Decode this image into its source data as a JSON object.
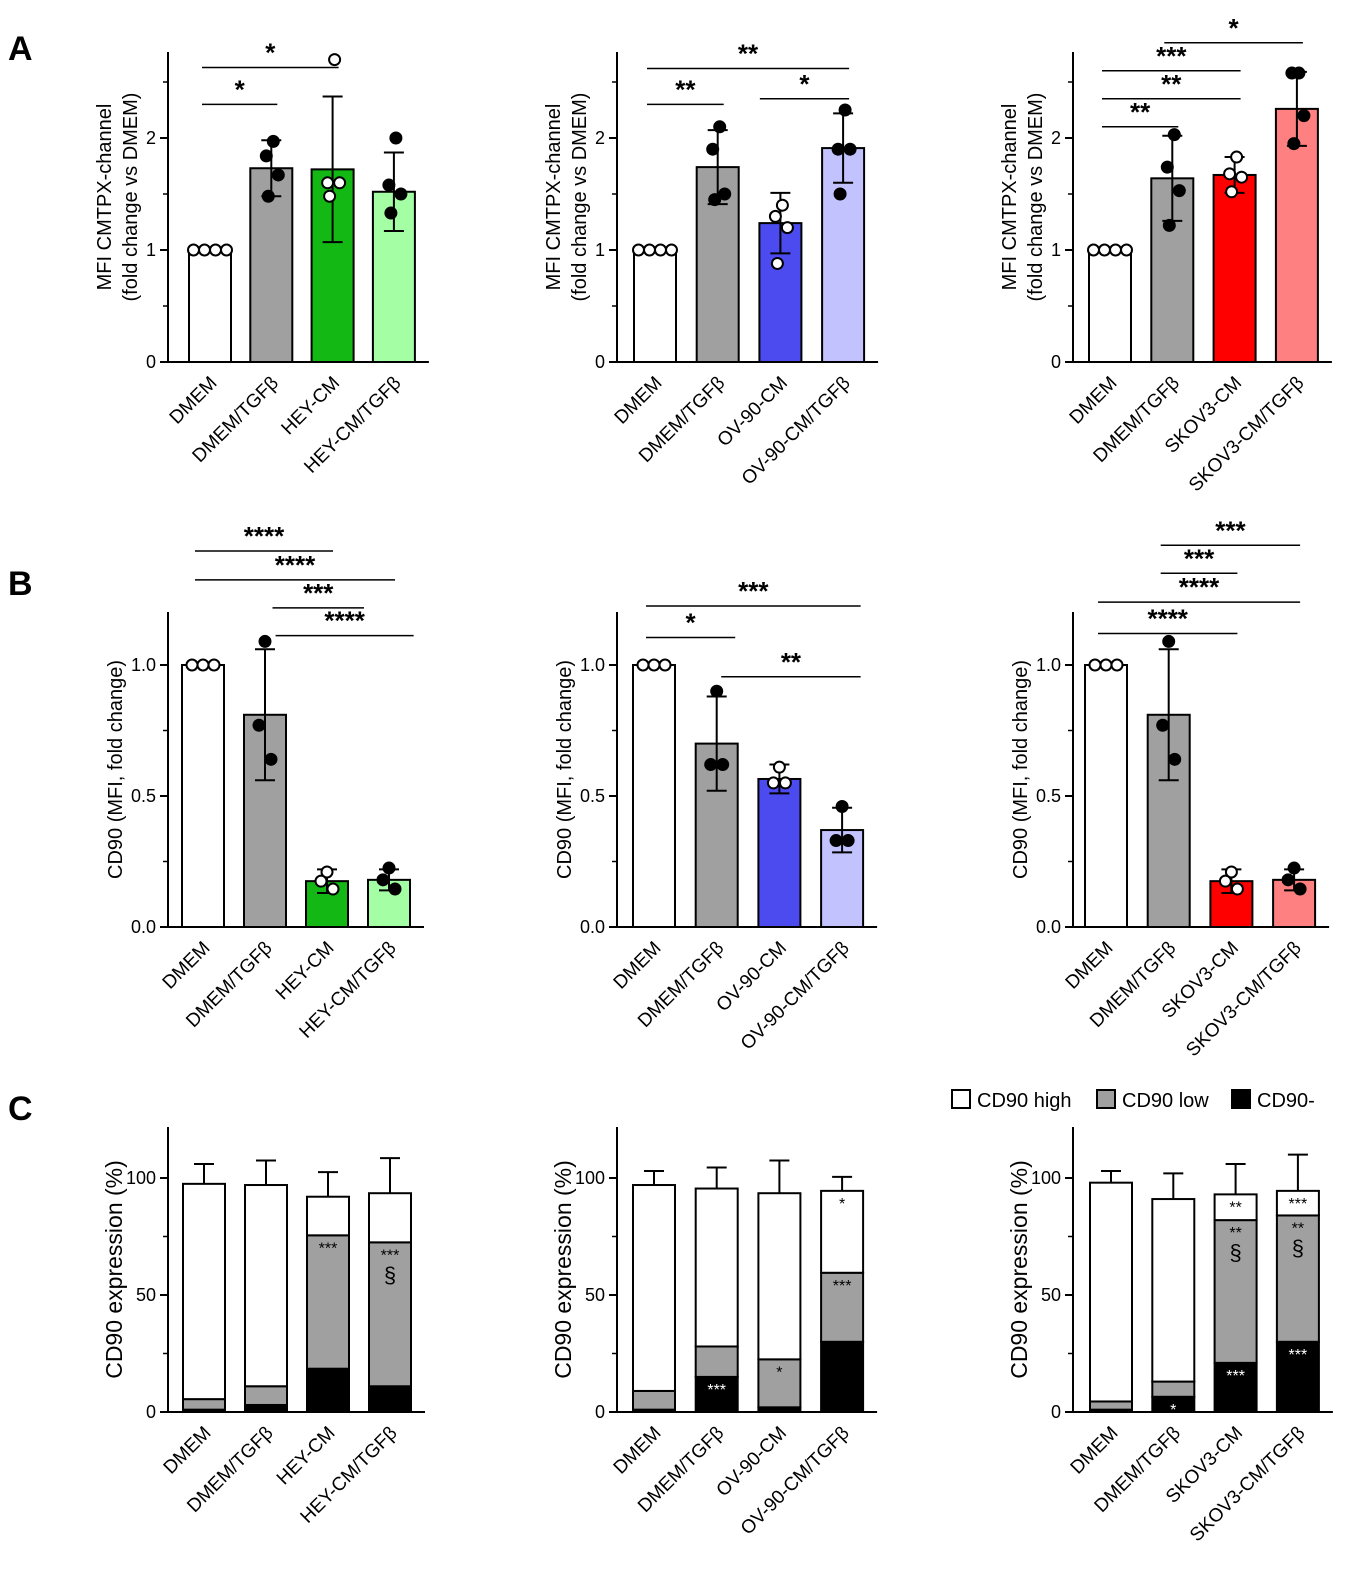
{
  "panel_letters": [
    "A",
    "B",
    "C"
  ],
  "legend": {
    "items": [
      {
        "label": "CD90 high",
        "color": "#ffffff"
      },
      {
        "label": "CD90 low",
        "color": "#a0a0a0"
      },
      {
        "label": "CD90-",
        "color": "#000000"
      }
    ]
  },
  "chart_data": [
    {
      "id": "A1",
      "type": "bar",
      "panel": "A",
      "ylabel": [
        "MFI CMTPX-channel",
        "(fold change vs DMEM)"
      ],
      "ylim": [
        0,
        2.8
      ],
      "yticks": [
        "0",
        "1",
        "2"
      ],
      "ytick_values": [
        0,
        1,
        2
      ],
      "categories": [
        "DMEM",
        "DMEM/TGFβ",
        "HEY-CM",
        "HEY-CM/TGFβ"
      ],
      "colors": [
        "#ffffff",
        "#a0a0a0",
        "#14b814",
        "#a4ffa4"
      ],
      "values": [
        1.0,
        1.73,
        1.72,
        1.52
      ],
      "error": [
        0,
        0.25,
        0.65,
        0.35
      ],
      "points": [
        [
          1,
          1,
          1,
          1
        ],
        [
          1.97,
          1.84,
          1.67,
          1.48
        ],
        [
          2.7,
          1.6,
          1.6,
          1.48
        ],
        [
          2.0,
          1.58,
          1.5,
          1.33
        ]
      ],
      "open_points": [
        true,
        false,
        true,
        false
      ],
      "significance": [
        {
          "from": 0,
          "to": 1,
          "label": "*",
          "y": 2.3
        },
        {
          "from": 0,
          "to": 2,
          "label": "*",
          "y": 2.63
        }
      ]
    },
    {
      "id": "A2",
      "type": "bar",
      "panel": "A",
      "ylabel": [
        "MFI CMTPX-channel",
        "(fold change vs DMEM)"
      ],
      "ylim": [
        0,
        2.8
      ],
      "yticks": [
        "0",
        "1",
        "2"
      ],
      "ytick_values": [
        0,
        1,
        2
      ],
      "categories": [
        "DMEM",
        "DMEM/TGFβ",
        "OV-90-CM",
        "OV-90-CM/TGFβ"
      ],
      "colors": [
        "#ffffff",
        "#a0a0a0",
        "#4b4bf0",
        "#c2c2ff"
      ],
      "values": [
        1.0,
        1.74,
        1.24,
        1.91
      ],
      "error": [
        0,
        0.33,
        0.27,
        0.31
      ],
      "points": [
        [
          1,
          1,
          1,
          1
        ],
        [
          2.1,
          1.9,
          1.5,
          1.45
        ],
        [
          1.4,
          1.3,
          1.2,
          0.88
        ],
        [
          2.25,
          1.9,
          1.9,
          1.5
        ]
      ],
      "open_points": [
        true,
        false,
        true,
        false
      ],
      "significance": [
        {
          "from": 0,
          "to": 1,
          "label": "**",
          "y": 2.3
        },
        {
          "from": 1.8,
          "to": 3,
          "label": "*",
          "y": 2.35
        },
        {
          "from": 0,
          "to": 3,
          "label": "**",
          "y": 2.62
        }
      ]
    },
    {
      "id": "A3",
      "type": "bar",
      "panel": "A",
      "ylabel": [
        "MFI CMTPX-channel",
        "(fold change vs DMEM)"
      ],
      "ylim": [
        0,
        2.8
      ],
      "yticks": [
        "0",
        "1",
        "2"
      ],
      "ytick_values": [
        0,
        1,
        2
      ],
      "categories": [
        "DMEM",
        "DMEM/TGFβ",
        "SKOV3-CM",
        "SKOV3-CM/TGFβ"
      ],
      "colors": [
        "#ffffff",
        "#a0a0a0",
        "#ff0000",
        "#ff8080"
      ],
      "values": [
        1.0,
        1.64,
        1.67,
        2.26
      ],
      "error": [
        0,
        0.38,
        0.16,
        0.33
      ],
      "points": [
        [
          1,
          1,
          1,
          1
        ],
        [
          2.03,
          1.74,
          1.53,
          1.22
        ],
        [
          1.83,
          1.68,
          1.65,
          1.52
        ],
        [
          2.58,
          2.58,
          2.2,
          1.95
        ]
      ],
      "open_points": [
        true,
        false,
        true,
        false
      ],
      "significance": [
        {
          "from": 0,
          "to": 1,
          "label": "**",
          "y": 2.1
        },
        {
          "from": 0,
          "to": 2,
          "label": "**",
          "y": 2.35
        },
        {
          "from": 0,
          "to": 2,
          "label": "***",
          "y": 2.6
        },
        {
          "from": 1,
          "to": 3,
          "label": "*",
          "y": 2.85
        }
      ]
    },
    {
      "id": "B1",
      "type": "bar",
      "panel": "B",
      "ylabel": [
        "CD90 (MFI, fold change)"
      ],
      "ylim": [
        0,
        1.2
      ],
      "yticks": [
        "0.0",
        "0.5",
        "1.0"
      ],
      "ytick_values": [
        0,
        0.5,
        1
      ],
      "categories": [
        "DMEM",
        "DMEM/TGFβ",
        "HEY-CM",
        "HEY-CM/TGFβ"
      ],
      "colors": [
        "#ffffff",
        "#a0a0a0",
        "#14b814",
        "#a4ffa4"
      ],
      "values": [
        1.0,
        0.81,
        0.175,
        0.18
      ],
      "error": [
        0,
        0.25,
        0.045,
        0.04
      ],
      "points": [
        [
          1,
          1,
          1
        ],
        [
          1.09,
          0.77,
          0.64
        ],
        [
          0.21,
          0.175,
          0.145
        ],
        [
          0.225,
          0.18,
          0.145
        ]
      ],
      "open_points": [
        true,
        false,
        true,
        false
      ],
      "significance": [
        {
          "from": 1.3,
          "to": 3.3,
          "label": "****",
          "y": 1.112
        },
        {
          "from": 1.25,
          "to": 2.5,
          "label": "***",
          "y": 1.218
        },
        {
          "from": 0,
          "to": 3,
          "label": "****",
          "y": 1.325
        },
        {
          "from": 0,
          "to": 2,
          "label": "****",
          "y": 1.435
        }
      ]
    },
    {
      "id": "B2",
      "type": "bar",
      "panel": "B",
      "ylabel": [
        "CD90 (MFI, fold change)"
      ],
      "ylim": [
        0,
        1.2
      ],
      "yticks": [
        "0.0",
        "0.5",
        "1.0"
      ],
      "ytick_values": [
        0,
        0.5,
        1
      ],
      "categories": [
        "DMEM",
        "DMEM/TGFβ",
        "OV-90-CM",
        "OV-90-CM/TGFβ"
      ],
      "colors": [
        "#ffffff",
        "#a0a0a0",
        "#4b4bf0",
        "#c2c2ff"
      ],
      "values": [
        1.0,
        0.7,
        0.565,
        0.37
      ],
      "error": [
        0,
        0.18,
        0.055,
        0.085
      ],
      "points": [
        [
          1,
          1,
          1
        ],
        [
          0.9,
          0.62,
          0.62
        ],
        [
          0.61,
          0.55,
          0.55
        ],
        [
          0.46,
          0.33,
          0.33
        ]
      ],
      "open_points": [
        true,
        false,
        true,
        false
      ],
      "significance": [
        {
          "from": 1.2,
          "to": 3.2,
          "label": "**",
          "y": 0.955
        },
        {
          "from": 0,
          "to": 1.2,
          "label": "*",
          "y": 1.105
        },
        {
          "from": 0,
          "to": 3.2,
          "label": "***",
          "y": 1.225
        }
      ]
    },
    {
      "id": "B3",
      "type": "bar",
      "panel": "B",
      "ylabel": [
        "CD90 (MFI, fold change)"
      ],
      "ylim": [
        0,
        1.2
      ],
      "yticks": [
        "0.0",
        "0.5",
        "1.0"
      ],
      "ytick_values": [
        0,
        0.5,
        1
      ],
      "categories": [
        "DMEM",
        "DMEM/TGFβ",
        "SKOV3-CM",
        "SKOV3-CM/TGFβ"
      ],
      "colors": [
        "#ffffff",
        "#a0a0a0",
        "#ff0000",
        "#ff8080"
      ],
      "values": [
        1.0,
        0.81,
        0.175,
        0.18
      ],
      "error": [
        0,
        0.25,
        0.045,
        0.04
      ],
      "points": [
        [
          1,
          1,
          1
        ],
        [
          1.09,
          0.77,
          0.64
        ],
        [
          0.21,
          0.175,
          0.145
        ],
        [
          0.225,
          0.18,
          0.145
        ]
      ],
      "open_points": [
        true,
        false,
        true,
        false
      ],
      "significance": [
        {
          "from": 0,
          "to": 2,
          "label": "****",
          "y": 1.12
        },
        {
          "from": 0,
          "to": 3,
          "label": "****",
          "y": 1.24
        },
        {
          "from": 1,
          "to": 2,
          "label": "***",
          "y": 1.35
        },
        {
          "from": 1,
          "to": 3,
          "label": "***",
          "y": 1.457
        }
      ]
    },
    {
      "id": "C1",
      "type": "bar",
      "stacked": true,
      "panel": "C",
      "ylabel": [
        "CD90 expression (%)"
      ],
      "ylim": [
        0,
        120
      ],
      "yticks": [
        "0",
        "50",
        "100"
      ],
      "ytick_values": [
        0,
        50,
        100
      ],
      "categories": [
        "DMEM",
        "DMEM/TGFβ",
        "HEY-CM",
        "HEY-CM/TGFβ"
      ],
      "series": [
        {
          "name": "CD90-",
          "color": "#000000",
          "values": [
            1,
            3,
            18.5,
            11
          ],
          "error": [
            2,
            5,
            14,
            9
          ],
          "labels": [
            "",
            "",
            "",
            ""
          ],
          "label_color": "#ffffff"
        },
        {
          "name": "CD90 low",
          "color": "#a0a0a0",
          "values": [
            4.5,
            8,
            57,
            61.5
          ],
          "error": [
            6,
            5,
            7,
            11.5
          ],
          "labels": [
            "",
            "",
            "***",
            "***\n§"
          ],
          "label_color": "#000000"
        },
        {
          "name": "CD90 high",
          "color": "#ffffff",
          "values": [
            92,
            86,
            16.5,
            21
          ],
          "error": [
            8.5,
            10.5,
            10.5,
            15
          ],
          "labels": [
            "",
            "",
            "",
            ""
          ],
          "label_color": "#000000"
        }
      ]
    },
    {
      "id": "C2",
      "type": "bar",
      "stacked": true,
      "panel": "C",
      "ylabel": [
        "CD90 expression (%)"
      ],
      "ylim": [
        0,
        120
      ],
      "yticks": [
        "0",
        "50",
        "100"
      ],
      "ytick_values": [
        0,
        50,
        100
      ],
      "categories": [
        "DMEM",
        "DMEM/TGFβ",
        "OV-90-CM",
        "OV-90-CM/TGFβ"
      ],
      "series": [
        {
          "name": "CD90-",
          "color": "#000000",
          "values": [
            1,
            15,
            2,
            30
          ],
          "error": [
            1,
            10,
            1,
            10
          ],
          "labels": [
            "",
            "***",
            "",
            ""
          ],
          "label_color": "#ffffff"
        },
        {
          "name": "CD90 low",
          "color": "#a0a0a0",
          "values": [
            8,
            13,
            20.5,
            29.5
          ],
          "error": [
            4.5,
            1,
            11.5,
            3.5
          ],
          "labels": [
            "",
            "",
            "*",
            "***"
          ],
          "label_color": "#000000"
        },
        {
          "name": "CD90 high",
          "color": "#ffffff",
          "values": [
            88,
            67.5,
            71,
            35
          ],
          "error": [
            6,
            9,
            14,
            6
          ],
          "labels": [
            "",
            "",
            "",
            "*"
          ],
          "label_color": "#000000"
        }
      ]
    },
    {
      "id": "C3",
      "type": "bar",
      "stacked": true,
      "panel": "C",
      "ylabel": [
        "CD90 expression (%)"
      ],
      "ylim": [
        0,
        120
      ],
      "yticks": [
        "0",
        "50",
        "100"
      ],
      "ytick_values": [
        0,
        50,
        100
      ],
      "categories": [
        "DMEM",
        "DMEM/TGFβ",
        "SKOV3-CM",
        "SKOV3-CM/TGFβ"
      ],
      "series": [
        {
          "name": "CD90-",
          "color": "#000000",
          "values": [
            1,
            6.5,
            21,
            30
          ],
          "error": [
            1,
            4.5,
            10,
            10
          ],
          "labels": [
            "",
            "*",
            "***",
            "***"
          ],
          "label_color": "#ffffff"
        },
        {
          "name": "CD90 low",
          "color": "#a0a0a0",
          "values": [
            3.5,
            6.5,
            61,
            54
          ],
          "error": [
            4.5,
            4,
            0,
            0
          ],
          "labels": [
            "",
            "",
            "**\n§",
            "**\n§"
          ],
          "label_color": "#000000"
        },
        {
          "name": "CD90 high",
          "color": "#ffffff",
          "values": [
            93.5,
            78,
            11,
            10.5
          ],
          "error": [
            5,
            11,
            13,
            15.5
          ],
          "labels": [
            "",
            "",
            "**",
            "***"
          ],
          "label_color": "#000000"
        }
      ]
    }
  ]
}
